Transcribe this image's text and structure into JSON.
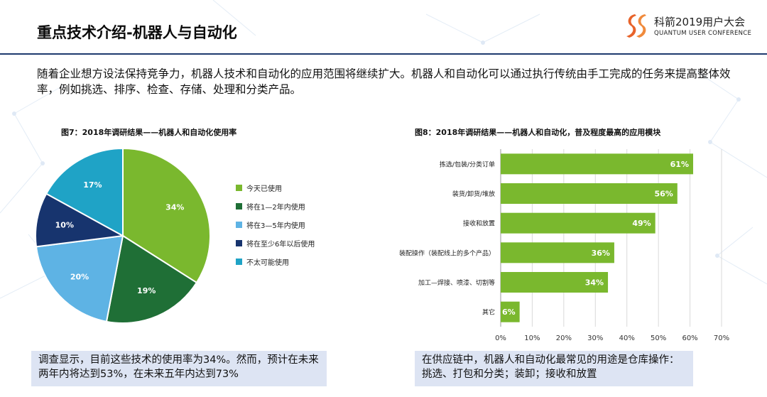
{
  "header": {
    "title": "重点技术介绍-机器人与自动化",
    "brand_main": "科箭2019用户大会",
    "brand_sub": "QUANTUM USER CONFERENCE"
  },
  "intro": "随着企业想方设法保持竞争力，机器人技术和自动化的应用范围将继续扩大。机器人和自动化可以通过执行传统由手工完成的任务来提高整体效率，例如挑选、排序、检查、存储、处理和分类产品。",
  "colors": {
    "header_rule": "#1e3a6e",
    "caption_bg": "#dde4f3",
    "bar": "#7ab82e",
    "pie": [
      "#7ab82e",
      "#1f6f36",
      "#5eb3e4",
      "#17346e",
      "#1fa3c6"
    ]
  },
  "chart_data": [
    {
      "type": "pie",
      "title": "图7：2018年调研结果——机器人和自动化使用率",
      "categories": [
        "今天已使用",
        "将在1—2年内使用",
        "将在3—5年内使用",
        "将在至少6年以后使用",
        "不太可能使用"
      ],
      "values": [
        34,
        19,
        20,
        10,
        17
      ],
      "labels": [
        "34%",
        "19%",
        "20%",
        "10%",
        "17%"
      ],
      "legend": "right"
    },
    {
      "type": "bar",
      "orientation": "horizontal",
      "title": "图8：2018年调研结果——机器人和自动化，普及程度最高的应用模块",
      "categories": [
        "拣选/包装/分类订单",
        "装货/卸货/堆放",
        "接收和放置",
        "装配操作（装配线上的多个产品）",
        "加工—焊接、喷漆、切割等",
        "其它"
      ],
      "values": [
        61,
        56,
        49,
        36,
        34,
        6
      ],
      "labels": [
        "61%",
        "56%",
        "49%",
        "36%",
        "34%",
        "6%"
      ],
      "xlim": [
        0,
        70
      ],
      "ticks": [
        "0%",
        "10%",
        "20%",
        "30%",
        "40%",
        "50%",
        "60%",
        "70%"
      ],
      "grid": true
    }
  ],
  "captions": {
    "left": "调查显示，目前这些技术的使用率为34%。然而，预计在未来两年内将达到53%，在未来五年内达到73%",
    "right": "在供应链中，机器人和自动化最常见的用途是仓库操作：挑选、打包和分类；装卸；接收和放置"
  }
}
